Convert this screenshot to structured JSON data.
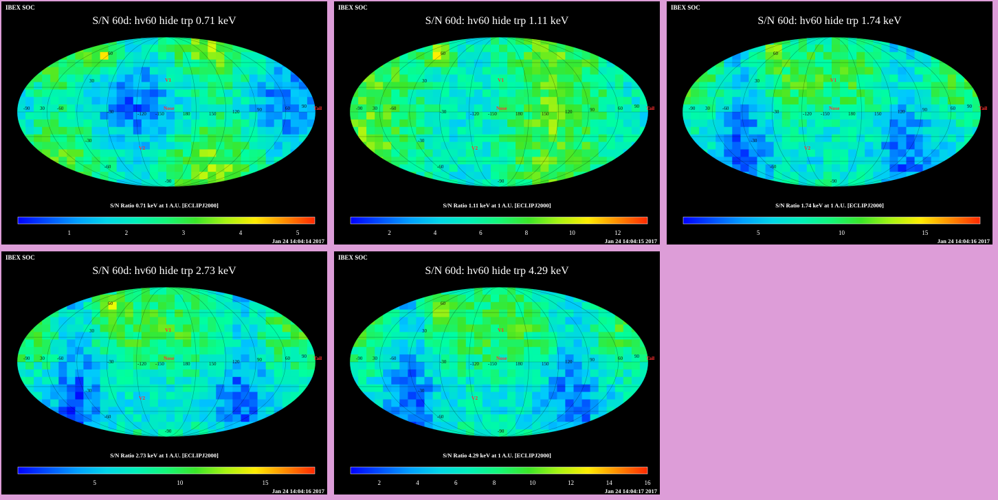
{
  "panels": [
    {
      "header": "IBEX SOC",
      "title": "S/N  60d: hv60 hide trp 0.71 keV",
      "colorbar_label": "S/N Ratio 0.71 keV at 1 A.U. [ECLIPJ2000]",
      "timestamp": "Jan 24 14:04:14 2017",
      "range": [
        0.1,
        5.3
      ],
      "ticks": [
        {
          "v": 1,
          "t": "1"
        },
        {
          "v": 2,
          "t": "2"
        },
        {
          "v": 3,
          "t": "3"
        },
        {
          "v": 4,
          "t": "4"
        },
        {
          "v": 5,
          "t": "5"
        }
      ]
    },
    {
      "header": "IBEX SOC",
      "title": "S/N  60d: hv60 hide trp 1.11 keV",
      "colorbar_label": "S/N Ratio 1.11 keV at 1 A.U. [ECLIPJ2000]",
      "timestamp": "Jan 24 14:04:15 2017",
      "range": [
        0.3,
        13.3
      ],
      "ticks": [
        {
          "v": 2,
          "t": "2"
        },
        {
          "v": 4,
          "t": "4"
        },
        {
          "v": 6,
          "t": "6"
        },
        {
          "v": 8,
          "t": "8"
        },
        {
          "v": 10,
          "t": "10"
        },
        {
          "v": 12,
          "t": "12"
        }
      ]
    },
    {
      "header": "IBEX SOC",
      "title": "S/N  60d: hv60 hide trp 1.74 keV",
      "colorbar_label": "S/N Ratio 1.74 keV at 1 A.U. [ECLIPJ2000]",
      "timestamp": "Jan 24 14:04:16 2017",
      "range": [
        0.5,
        18.3
      ],
      "ticks": [
        {
          "v": 5,
          "t": "5"
        },
        {
          "v": 10,
          "t": "10"
        },
        {
          "v": 15,
          "t": "15"
        }
      ]
    },
    {
      "header": "IBEX SOC",
      "title": "S/N  60d: hv60 hide trp 2.73 keV",
      "colorbar_label": "S/N Ratio 2.73 keV at 1 A.U. [ECLIPJ2000]",
      "timestamp": "Jan 24 14:04:16 2017",
      "range": [
        0.5,
        17.9
      ],
      "ticks": [
        {
          "v": 5,
          "t": "5"
        },
        {
          "v": 10,
          "t": "10"
        },
        {
          "v": 15,
          "t": "15"
        }
      ]
    },
    {
      "header": "IBEX SOC",
      "title": "S/N  60d: hv60 hide trp 4.29 keV",
      "colorbar_label": "S/N Ratio 4.29 keV at 1 A.U. [ECLIPJ2000]",
      "timestamp": "Jan 24 14:04:17 2017",
      "range": [
        0.5,
        16.0
      ],
      "ticks": [
        {
          "v": 2,
          "t": "2"
        },
        {
          "v": 4,
          "t": "4"
        },
        {
          "v": 6,
          "t": "6"
        },
        {
          "v": 8,
          "t": "8"
        },
        {
          "v": 10,
          "t": "10"
        },
        {
          "v": 12,
          "t": "12"
        },
        {
          "v": 14,
          "t": "14"
        },
        {
          "v": 16,
          "t": "16"
        }
      ]
    }
  ],
  "map_labels": {
    "markers": [
      "V1",
      "Nose",
      "V2",
      "Tail"
    ],
    "grid": [
      "60",
      "30",
      "-30",
      "-60",
      "30",
      "-90",
      "-60",
      "-30",
      "-120",
      "-150",
      "180",
      "150",
      "120",
      "90",
      "60",
      "90",
      "-90"
    ]
  },
  "colors": {
    "background": "#dd9dd8",
    "panel": "#000000",
    "marker": "#ff3030"
  }
}
